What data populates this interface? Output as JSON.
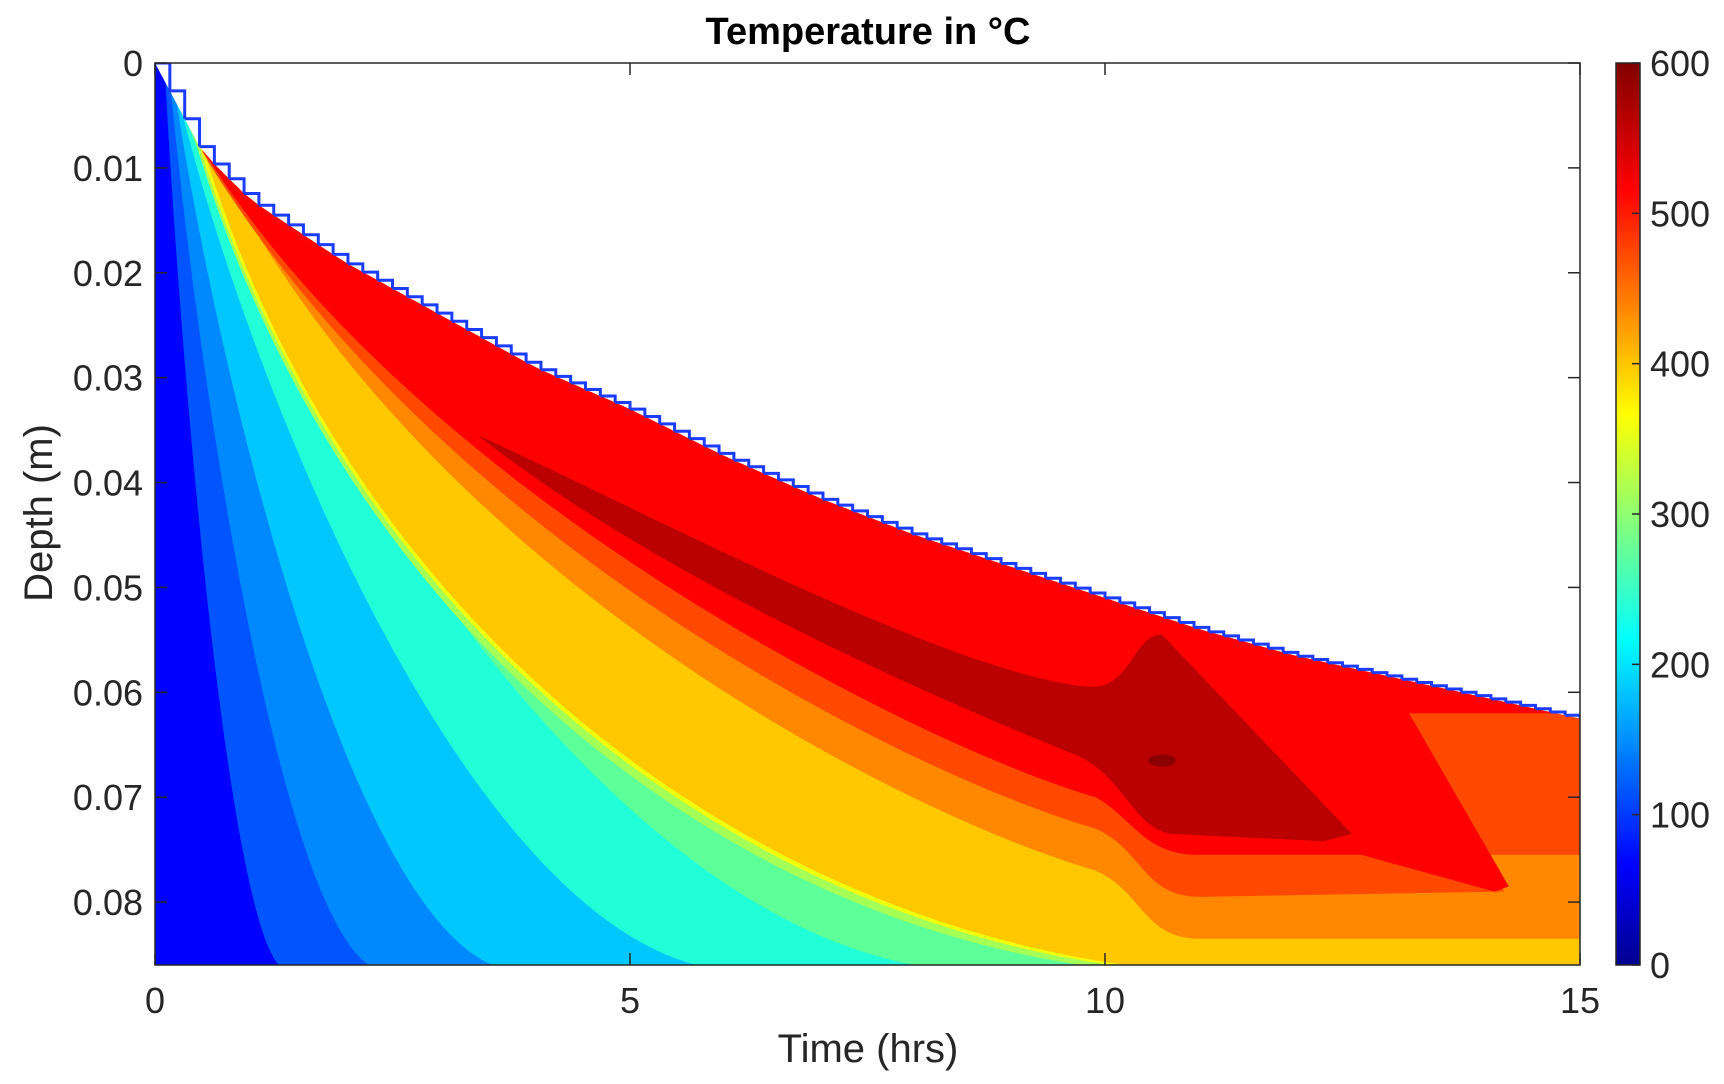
{
  "chart_data": {
    "type": "contour",
    "title": "Temperature in °C",
    "xlabel": "Time (hrs)",
    "ylabel": "Depth (m)",
    "xlim": [
      0,
      15
    ],
    "ylim": [
      0,
      0.086
    ],
    "y_reversed": true,
    "x_ticks": [
      0,
      5,
      10,
      15
    ],
    "x_tick_labels": [
      "0",
      "5",
      "10",
      "15"
    ],
    "y_ticks": [
      0,
      0.01,
      0.02,
      0.03,
      0.04,
      0.05,
      0.06,
      0.07,
      0.08
    ],
    "y_tick_labels": [
      "0",
      "0.01",
      "0.02",
      "0.03",
      "0.04",
      "0.05",
      "0.06",
      "0.07",
      "0.08"
    ],
    "colorbar": {
      "min": 0,
      "max": 600,
      "ticks": [
        0,
        100,
        200,
        300,
        400,
        500,
        600
      ],
      "tick_labels": [
        "0",
        "100",
        "200",
        "300",
        "400",
        "500",
        "600"
      ],
      "colormap": "jet"
    },
    "contour_level_step": 50,
    "burn_front_depth": {
      "time": [
        0,
        0.5,
        1,
        2,
        3,
        4,
        5,
        6,
        7,
        8,
        9,
        10,
        11,
        12,
        13,
        14,
        15
      ],
      "depth": [
        0,
        0.0085,
        0.013,
        0.019,
        0.024,
        0.029,
        0.033,
        0.0375,
        0.0415,
        0.045,
        0.048,
        0.051,
        0.054,
        0.0565,
        0.0585,
        0.0605,
        0.0625
      ]
    },
    "isotherm_bands": [
      {
        "level": 50,
        "color": "#0055ff",
        "depth_bottom_time": 1.3
      },
      {
        "level": 100,
        "color": "#0088ff",
        "depth_bottom_time": 2.25
      },
      {
        "level": 150,
        "color": "#00c8ff",
        "depth_bottom_time": 3.55
      },
      {
        "level": 200,
        "color": "#20ffd8",
        "depth_bottom_time": 5.7
      },
      {
        "level": 250,
        "color": "#5cff98",
        "depth_bottom_time": 8.0
      },
      {
        "level": 300,
        "color": "#a4ff56",
        "depth_bottom_time": 9.75
      },
      {
        "level": 350,
        "color": "#f0ff0e",
        "depth_bottom_time": 10.05
      },
      {
        "level": 400,
        "color": "#ffc800",
        "depth_bottom_time": 10.2
      },
      {
        "level": 450,
        "color": "#ff8800",
        "depth_bottom_time": 15.0
      },
      {
        "level": 500,
        "color": "#ff4800",
        "depth_bottom_time": 15.0
      },
      {
        "level": 550,
        "color": "#ff0000",
        "depth_bottom_time": 14.0
      },
      {
        "level": 600,
        "color": "#bb0000",
        "depth_bottom_time": 12.6
      }
    ],
    "peak_region": {
      "temperature": 575,
      "time_range": [
        3.5,
        12.6
      ],
      "depth_range": [
        0.035,
        0.074
      ]
    }
  }
}
